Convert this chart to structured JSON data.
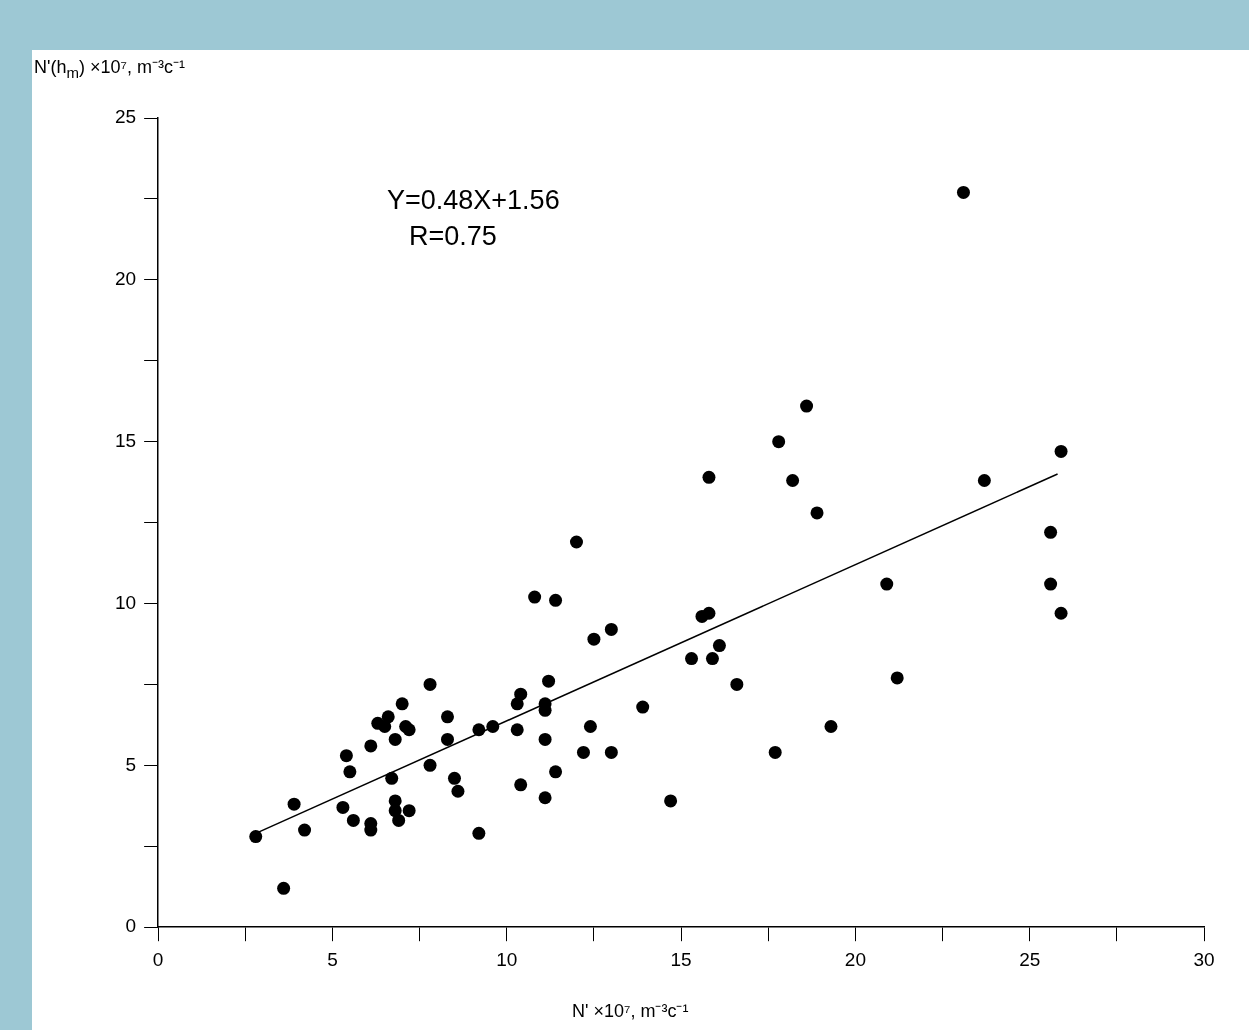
{
  "chart_data": {
    "type": "scatter",
    "xlabel": "N' ×10⁷, m⁻³c⁻¹",
    "ylabel": "N'(h$_{m}$) ×10⁷, m⁻³c⁻¹",
    "annotations": [
      "Y=0.48X+1.56",
      "R=0.75"
    ],
    "xlim": [
      0,
      30
    ],
    "xticks": [
      0,
      {
        "value": 2.5,
        "label": null
      },
      5,
      {
        "value": 7.5,
        "label": null
      },
      10,
      {
        "value": 12.5,
        "label": null
      },
      15,
      {
        "value": 17.5,
        "label": null
      },
      20,
      {
        "value": 22.5,
        "label": null
      },
      25,
      {
        "value": 27.5,
        "label": null
      },
      30
    ],
    "ylim": [
      0,
      25
    ],
    "yticks": [
      0,
      {
        "value": 2.5,
        "label": null
      },
      5,
      {
        "value": 7.5,
        "label": null
      },
      10,
      {
        "value": 12.5,
        "label": null
      },
      15,
      {
        "value": 17.5,
        "label": null
      },
      20,
      {
        "value": 22.5,
        "label": null
      },
      25
    ],
    "grid": false,
    "legend": false,
    "marker": "circle",
    "series": [
      {
        "type": "scatter",
        "color": "#000000",
        "x": [
          2.8,
          3.6,
          3.9,
          4.2,
          5.3,
          5.4,
          5.5,
          5.6,
          6.1,
          6.1,
          6.1,
          6.3,
          6.5,
          6.6,
          6.7,
          6.8,
          6.8,
          6.8,
          6.9,
          7.0,
          7.1,
          7.2,
          7.2,
          7.8,
          7.8,
          8.3,
          8.3,
          8.5,
          8.6,
          9.2,
          9.2,
          9.6,
          10.3,
          10.3,
          10.4,
          10.4,
          10.8,
          11.1,
          11.1,
          11.1,
          11.1,
          11.2,
          11.4,
          11.4,
          12.0,
          12.2,
          12.4,
          12.5,
          13.0,
          13.0,
          13.9,
          14.7,
          15.3,
          15.6,
          15.8,
          15.8,
          15.9,
          16.1,
          16.6,
          17.7,
          17.8,
          18.2,
          18.6,
          18.9,
          19.3,
          20.9,
          21.2,
          23.1,
          23.7,
          25.6,
          25.6,
          25.9,
          25.9
        ],
        "values": [
          2.8,
          1.2,
          3.8,
          3.0,
          3.7,
          5.3,
          4.8,
          3.3,
          5.6,
          3.0,
          3.2,
          6.3,
          6.2,
          6.5,
          4.6,
          5.8,
          3.9,
          3.6,
          3.3,
          6.9,
          6.2,
          6.1,
          3.6,
          7.5,
          5.0,
          6.5,
          5.8,
          4.6,
          4.2,
          6.1,
          2.9,
          6.2,
          6.9,
          6.1,
          7.2,
          4.4,
          10.2,
          6.9,
          6.7,
          5.8,
          4.0,
          7.6,
          10.1,
          4.8,
          11.9,
          5.4,
          6.2,
          8.9,
          9.2,
          5.4,
          6.8,
          3.9,
          8.3,
          9.6,
          9.7,
          13.9,
          8.3,
          8.7,
          7.5,
          5.4,
          15.0,
          13.8,
          16.1,
          12.8,
          6.2,
          10.6,
          7.7,
          22.7,
          13.8,
          12.2,
          10.6,
          14.7,
          9.7
        ]
      },
      {
        "type": "line",
        "color": "#000000",
        "marker": "none",
        "x": [
          2.8,
          25.8
        ],
        "values": [
          2.9,
          14.0
        ]
      }
    ]
  }
}
